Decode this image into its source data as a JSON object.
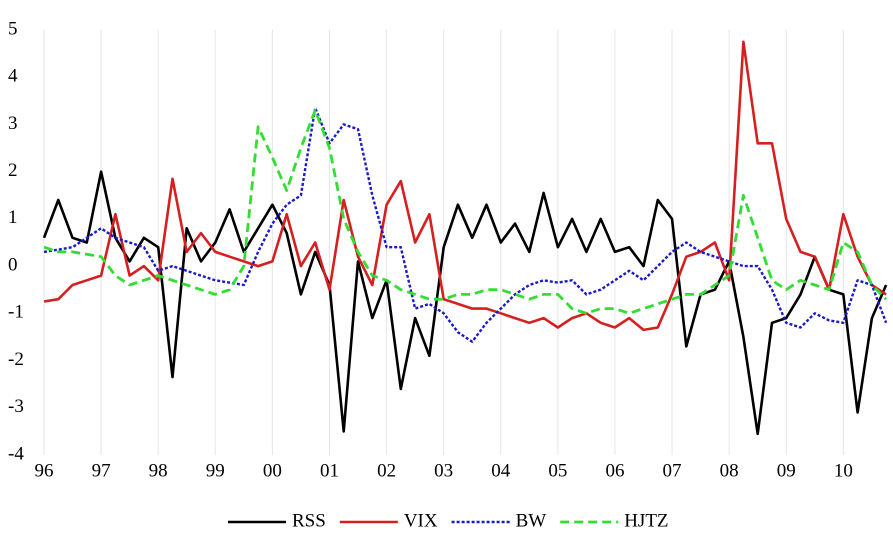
{
  "chart_data": {
    "type": "line",
    "x": [
      1996,
      1996.25,
      1996.5,
      1996.75,
      1997,
      1997.25,
      1997.5,
      1997.75,
      1998,
      1998.25,
      1998.5,
      1998.75,
      1999,
      1999.25,
      1999.5,
      1999.75,
      2000,
      2000.25,
      2000.5,
      2000.75,
      2001,
      2001.25,
      2001.5,
      2001.75,
      2002,
      2002.25,
      2002.5,
      2002.75,
      2003,
      2003.25,
      2003.5,
      2003.75,
      2004,
      2004.25,
      2004.5,
      2004.75,
      2005,
      2005.25,
      2005.5,
      2005.75,
      2006,
      2006.25,
      2006.5,
      2006.75,
      2007,
      2007.25,
      2007.5,
      2007.75,
      2008,
      2008.25,
      2008.5,
      2008.75,
      2009,
      2009.25,
      2009.5,
      2009.75,
      2010,
      2010.25,
      2010.5,
      2010.75
    ],
    "series": [
      {
        "name": "RSS",
        "color": "#000000",
        "dash": "solid",
        "values": [
          0.6,
          1.4,
          0.6,
          0.5,
          2.0,
          0.6,
          0.1,
          0.6,
          0.4,
          -2.35,
          0.8,
          0.1,
          0.5,
          1.2,
          0.3,
          0.8,
          1.3,
          0.7,
          -0.6,
          0.3,
          -0.4,
          -3.5,
          0.1,
          -1.1,
          -0.3,
          -2.6,
          -1.1,
          -1.9,
          0.4,
          1.3,
          0.6,
          1.3,
          0.5,
          0.9,
          0.3,
          1.55,
          0.4,
          1.0,
          0.3,
          1.0,
          0.3,
          0.4,
          0.0,
          1.4,
          1.0,
          -1.7,
          -0.6,
          -0.5,
          0.1,
          -1.5,
          -3.55,
          -1.2,
          -1.1,
          -0.6,
          0.2,
          -0.5,
          -0.6,
          -3.1,
          -1.1,
          -0.4
        ]
      },
      {
        "name": "VIX",
        "color": "#d61f1f",
        "dash": "solid",
        "values": [
          -0.75,
          -0.7,
          -0.4,
          -0.3,
          -0.2,
          1.1,
          -0.2,
          0.0,
          -0.3,
          1.85,
          0.3,
          0.7,
          0.3,
          0.2,
          0.1,
          0.0,
          0.1,
          1.1,
          0.0,
          0.5,
          -0.5,
          1.4,
          0.2,
          -0.4,
          1.3,
          1.8,
          0.5,
          1.1,
          -0.7,
          -0.8,
          -0.9,
          -0.9,
          -1.0,
          -1.1,
          -1.2,
          -1.1,
          -1.3,
          -1.1,
          -1.0,
          -1.2,
          -1.3,
          -1.1,
          -1.35,
          -1.3,
          -0.6,
          0.2,
          0.3,
          0.5,
          -0.3,
          4.75,
          2.6,
          2.6,
          1.0,
          0.3,
          0.2,
          -0.5,
          1.1,
          0.2,
          -0.4,
          -0.6
        ]
      },
      {
        "name": "BW",
        "color": "#1a1ac8",
        "dash": "dotted",
        "values": [
          0.3,
          0.35,
          0.4,
          0.6,
          0.8,
          0.6,
          0.5,
          0.4,
          -0.1,
          0.0,
          -0.1,
          -0.2,
          -0.3,
          -0.35,
          -0.4,
          0.3,
          0.9,
          1.3,
          1.5,
          3.35,
          2.6,
          3.0,
          2.9,
          1.5,
          0.4,
          0.4,
          -0.9,
          -0.8,
          -1.0,
          -1.4,
          -1.6,
          -1.2,
          -0.9,
          -0.6,
          -0.4,
          -0.3,
          -0.35,
          -0.3,
          -0.6,
          -0.5,
          -0.3,
          -0.1,
          -0.3,
          0.0,
          0.3,
          0.5,
          0.3,
          0.2,
          0.1,
          0.0,
          0.0,
          -0.5,
          -1.2,
          -1.3,
          -1.0,
          -1.15,
          -1.2,
          -0.3,
          -0.4,
          -1.2
        ]
      },
      {
        "name": "HJTZ",
        "color": "#33dd33",
        "dash": "dashed",
        "values": [
          0.4,
          0.3,
          0.3,
          0.25,
          0.2,
          -0.2,
          -0.4,
          -0.3,
          -0.2,
          -0.3,
          -0.4,
          -0.5,
          -0.6,
          -0.5,
          0.0,
          2.95,
          2.3,
          1.6,
          2.5,
          3.3,
          2.5,
          1.0,
          0.3,
          -0.2,
          -0.3,
          -0.5,
          -0.6,
          -0.7,
          -0.7,
          -0.6,
          -0.6,
          -0.5,
          -0.5,
          -0.6,
          -0.7,
          -0.6,
          -0.6,
          -0.9,
          -1.0,
          -0.9,
          -0.9,
          -1.0,
          -0.9,
          -0.8,
          -0.7,
          -0.6,
          -0.6,
          -0.4,
          -0.2,
          1.5,
          0.6,
          -0.3,
          -0.5,
          -0.3,
          -0.4,
          -0.5,
          0.5,
          0.3,
          -0.4,
          -0.7
        ]
      }
    ],
    "xlim": [
      1995.93,
      2010.87
    ],
    "xticks": [
      {
        "value": 1996,
        "label": "96"
      },
      {
        "value": 1997,
        "label": "97"
      },
      {
        "value": 1998,
        "label": "98"
      },
      {
        "value": 1999,
        "label": "99"
      },
      {
        "value": 2000,
        "label": "00"
      },
      {
        "value": 2001,
        "label": "01"
      },
      {
        "value": 2002,
        "label": "02"
      },
      {
        "value": 2003,
        "label": "03"
      },
      {
        "value": 2004,
        "label": "04"
      },
      {
        "value": 2005,
        "label": "05"
      },
      {
        "value": 2006,
        "label": "06"
      },
      {
        "value": 2007,
        "label": "07"
      },
      {
        "value": 2008,
        "label": "08"
      },
      {
        "value": 2009,
        "label": "09"
      },
      {
        "value": 2010,
        "label": "10"
      }
    ],
    "ylim": [
      -4,
      5
    ],
    "yticks": [
      -4,
      -3,
      -2,
      -1,
      0,
      1,
      2,
      3,
      4,
      5
    ],
    "grid": "x",
    "legend": "bottom"
  }
}
